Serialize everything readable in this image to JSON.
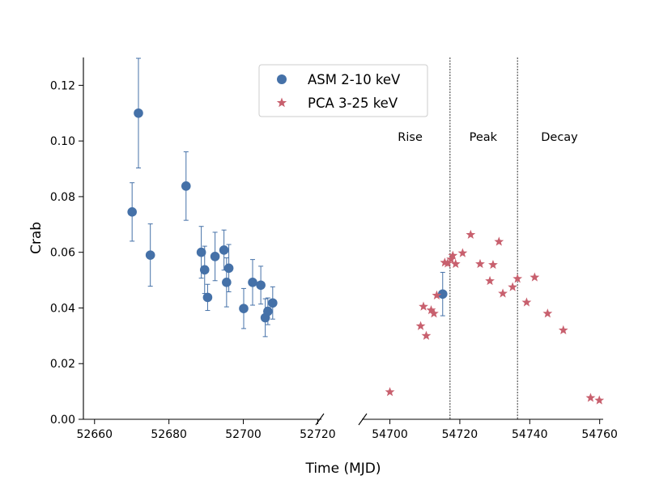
{
  "chart_data": {
    "type": "scatter",
    "title": "",
    "xlabel": "Time (MJD)",
    "ylabel": "Crab",
    "ylim": [
      0,
      0.13
    ],
    "yticks": [
      "0.00",
      "0.02",
      "0.04",
      "0.06",
      "0.08",
      "0.10",
      "0.12"
    ],
    "grid": false,
    "legend_position": "top-center",
    "broken_x_axis": true,
    "left_panel": {
      "xlim": [
        52657,
        52721
      ],
      "xticks": [
        "52660",
        "52680",
        "52700",
        "52720"
      ]
    },
    "right_panel": {
      "xlim": [
        54692,
        54761
      ],
      "xticks": [
        "54700",
        "54720",
        "54740",
        "54760"
      ]
    },
    "series": [
      {
        "name": "ASM 2-10 keV",
        "marker": "circle",
        "color": "#4571a8",
        "points": [
          {
            "x": 52670.1,
            "y": 0.0745,
            "err": 0.0105
          },
          {
            "x": 52671.8,
            "y": 0.11,
            "err": 0.0197
          },
          {
            "x": 52675.0,
            "y": 0.059,
            "err": 0.0112
          },
          {
            "x": 52684.6,
            "y": 0.0838,
            "err": 0.0123
          },
          {
            "x": 52688.7,
            "y": 0.06,
            "err": 0.0093
          },
          {
            "x": 52689.6,
            "y": 0.0537,
            "err": 0.0085
          },
          {
            "x": 52690.4,
            "y": 0.0438,
            "err": 0.0047
          },
          {
            "x": 52692.4,
            "y": 0.0585,
            "err": 0.0087
          },
          {
            "x": 52694.8,
            "y": 0.0608,
            "err": 0.0072
          },
          {
            "x": 52695.5,
            "y": 0.0492,
            "err": 0.0088
          },
          {
            "x": 52696.1,
            "y": 0.0543,
            "err": 0.0085
          },
          {
            "x": 52700.1,
            "y": 0.0398,
            "err": 0.0072
          },
          {
            "x": 52702.5,
            "y": 0.0492,
            "err": 0.0082
          },
          {
            "x": 52704.7,
            "y": 0.0482,
            "err": 0.0068
          },
          {
            "x": 52705.9,
            "y": 0.0365,
            "err": 0.0068
          },
          {
            "x": 52706.6,
            "y": 0.0388,
            "err": 0.0048
          },
          {
            "x": 52707.9,
            "y": 0.0418,
            "err": 0.0058
          },
          {
            "x": 54715.1,
            "y": 0.045,
            "err": 0.0078
          }
        ]
      },
      {
        "name": "PCA 3-25 keV",
        "marker": "star",
        "color": "#c8606e",
        "points": [
          {
            "x": 54700.0,
            "y": 0.0098
          },
          {
            "x": 54708.8,
            "y": 0.0335
          },
          {
            "x": 54709.6,
            "y": 0.0405
          },
          {
            "x": 54710.4,
            "y": 0.03
          },
          {
            "x": 54711.8,
            "y": 0.0392
          },
          {
            "x": 54712.6,
            "y": 0.038
          },
          {
            "x": 54713.4,
            "y": 0.0445
          },
          {
            "x": 54715.7,
            "y": 0.0563
          },
          {
            "x": 54716.5,
            "y": 0.056
          },
          {
            "x": 54717.5,
            "y": 0.0575
          },
          {
            "x": 54718.0,
            "y": 0.0588
          },
          {
            "x": 54718.8,
            "y": 0.0558
          },
          {
            "x": 54720.8,
            "y": 0.0597
          },
          {
            "x": 54723.1,
            "y": 0.0663
          },
          {
            "x": 54725.8,
            "y": 0.0558
          },
          {
            "x": 54728.6,
            "y": 0.0497
          },
          {
            "x": 54729.5,
            "y": 0.0555
          },
          {
            "x": 54731.2,
            "y": 0.0638
          },
          {
            "x": 54732.3,
            "y": 0.0452
          },
          {
            "x": 54735.1,
            "y": 0.0475
          },
          {
            "x": 54736.5,
            "y": 0.0505
          },
          {
            "x": 54739.1,
            "y": 0.042
          },
          {
            "x": 54741.4,
            "y": 0.051
          },
          {
            "x": 54745.1,
            "y": 0.038
          },
          {
            "x": 54749.6,
            "y": 0.032
          },
          {
            "x": 54757.4,
            "y": 0.0077
          },
          {
            "x": 54759.9,
            "y": 0.0068
          }
        ]
      }
    ],
    "vlines": [
      54717.2,
      54736.5
    ],
    "regions": [
      {
        "label": "Rise",
        "x": 54705.8
      },
      {
        "label": "Peak",
        "x": 54726.7
      },
      {
        "label": "Decay",
        "x": 54748.5
      }
    ]
  }
}
